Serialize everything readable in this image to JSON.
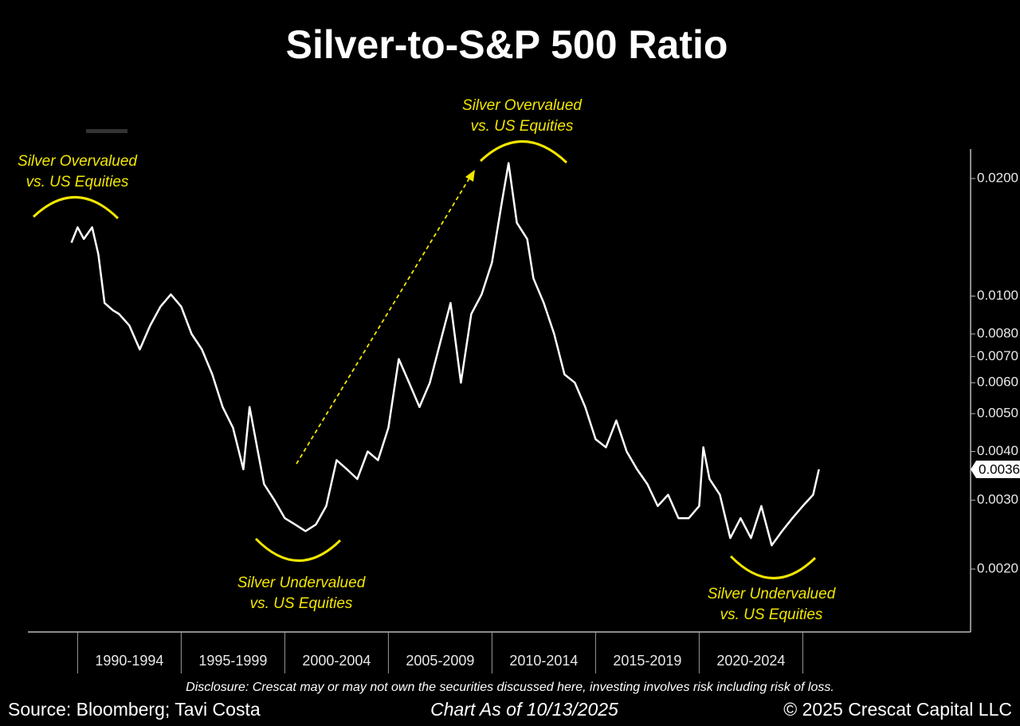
{
  "chart_data": {
    "type": "line",
    "title": "Silver-to-S&P 500 Ratio",
    "log_scale_y": true,
    "grid": false,
    "xlim": [
      1987.6,
      2033.1
    ],
    "xticks": [
      {
        "value": 1990,
        "label": "1990-1994"
      },
      {
        "value": 1995,
        "label": "1995-1999"
      },
      {
        "value": 2000,
        "label": "2000-2004"
      },
      {
        "value": 2005,
        "label": "2005-2009"
      },
      {
        "value": 2010,
        "label": "2010-2014"
      },
      {
        "value": 2015,
        "label": "2015-2019"
      },
      {
        "value": 2020,
        "label": "2020-2024"
      }
    ],
    "ylim": [
      0.00138,
      0.0238
    ],
    "yticks": [
      {
        "value": 0.02,
        "label": "0.0200"
      },
      {
        "value": 0.01,
        "label": "0.0100"
      },
      {
        "value": 0.008,
        "label": "0.0080"
      },
      {
        "value": 0.007,
        "label": "0.0070"
      },
      {
        "value": 0.006,
        "label": "0.0060"
      },
      {
        "value": 0.005,
        "label": "0.0050"
      },
      {
        "value": 0.004,
        "label": "0.0040"
      },
      {
        "value": 0.003,
        "label": "0.0030"
      },
      {
        "value": 0.002,
        "label": "0.0020"
      }
    ],
    "series": [
      {
        "color": "#ffffff",
        "x": [
          1989.7,
          1990.0,
          1990.3,
          1990.7,
          1991.0,
          1991.3,
          1991.7,
          1992.0,
          1992.5,
          1993.0,
          1993.5,
          1994.0,
          1994.5,
          1995.0,
          1995.5,
          1996.0,
          1996.5,
          1997.0,
          1997.5,
          1998.0,
          1998.3,
          1998.7,
          1999.0,
          1999.5,
          2000.0,
          2000.5,
          2001.0,
          2001.5,
          2002.0,
          2002.5,
          2003.0,
          2003.5,
          2004.0,
          2004.5,
          2005.0,
          2005.5,
          2006.0,
          2006.5,
          2007.0,
          2007.5,
          2008.0,
          2008.5,
          2009.0,
          2009.5,
          2010.0,
          2010.5,
          2010.8,
          2011.2,
          2011.7,
          2012.0,
          2012.5,
          2013.0,
          2013.5,
          2014.0,
          2014.5,
          2015.0,
          2015.5,
          2016.0,
          2016.5,
          2017.0,
          2017.5,
          2018.0,
          2018.5,
          2019.0,
          2019.5,
          2020.0,
          2020.2,
          2020.5,
          2021.0,
          2021.5,
          2022.0,
          2022.5,
          2023.0,
          2023.5,
          2024.0,
          2024.5,
          2025.0,
          2025.5,
          2025.78
        ],
        "values": [
          0.0137,
          0.015,
          0.014,
          0.015,
          0.0128,
          0.0096,
          0.0092,
          0.009,
          0.0084,
          0.0073,
          0.0084,
          0.0094,
          0.0101,
          0.0094,
          0.008,
          0.0073,
          0.0063,
          0.0052,
          0.0046,
          0.0036,
          0.0052,
          0.004,
          0.0033,
          0.003,
          0.0027,
          0.0026,
          0.0025,
          0.0026,
          0.0029,
          0.0038,
          0.0036,
          0.0034,
          0.004,
          0.0038,
          0.0046,
          0.0069,
          0.006,
          0.0052,
          0.006,
          0.0076,
          0.0096,
          0.006,
          0.009,
          0.0101,
          0.0122,
          0.0177,
          0.0219,
          0.0154,
          0.014,
          0.0111,
          0.0096,
          0.008,
          0.0063,
          0.006,
          0.0052,
          0.0043,
          0.0041,
          0.0048,
          0.004,
          0.0036,
          0.0033,
          0.0029,
          0.0031,
          0.0027,
          0.0027,
          0.0029,
          0.0041,
          0.0034,
          0.0031,
          0.0024,
          0.0027,
          0.0024,
          0.0029,
          0.0023,
          0.0025,
          0.0027,
          0.0029,
          0.0031,
          0.0036
        ]
      }
    ],
    "annotations": [
      {
        "lines": [
          "Silver Overvalued",
          "vs. US Equities"
        ]
      },
      {
        "lines": [
          "Silver Overvalued",
          "vs. US Equities"
        ]
      },
      {
        "lines": [
          "Silver Undervalued",
          "vs. US Equities"
        ]
      },
      {
        "lines": [
          "Silver Undervalued",
          "vs. US Equities"
        ]
      }
    ],
    "disclosure": "Disclosure: Crescat may or may not own the securities discussed here, investing involves risk including risk of loss.",
    "source": "Source: Bloomberg; Tavi Costa",
    "chart_date": "Chart As of 10/13/2025",
    "copyright": "© 2025 Crescat Capital LLC"
  }
}
